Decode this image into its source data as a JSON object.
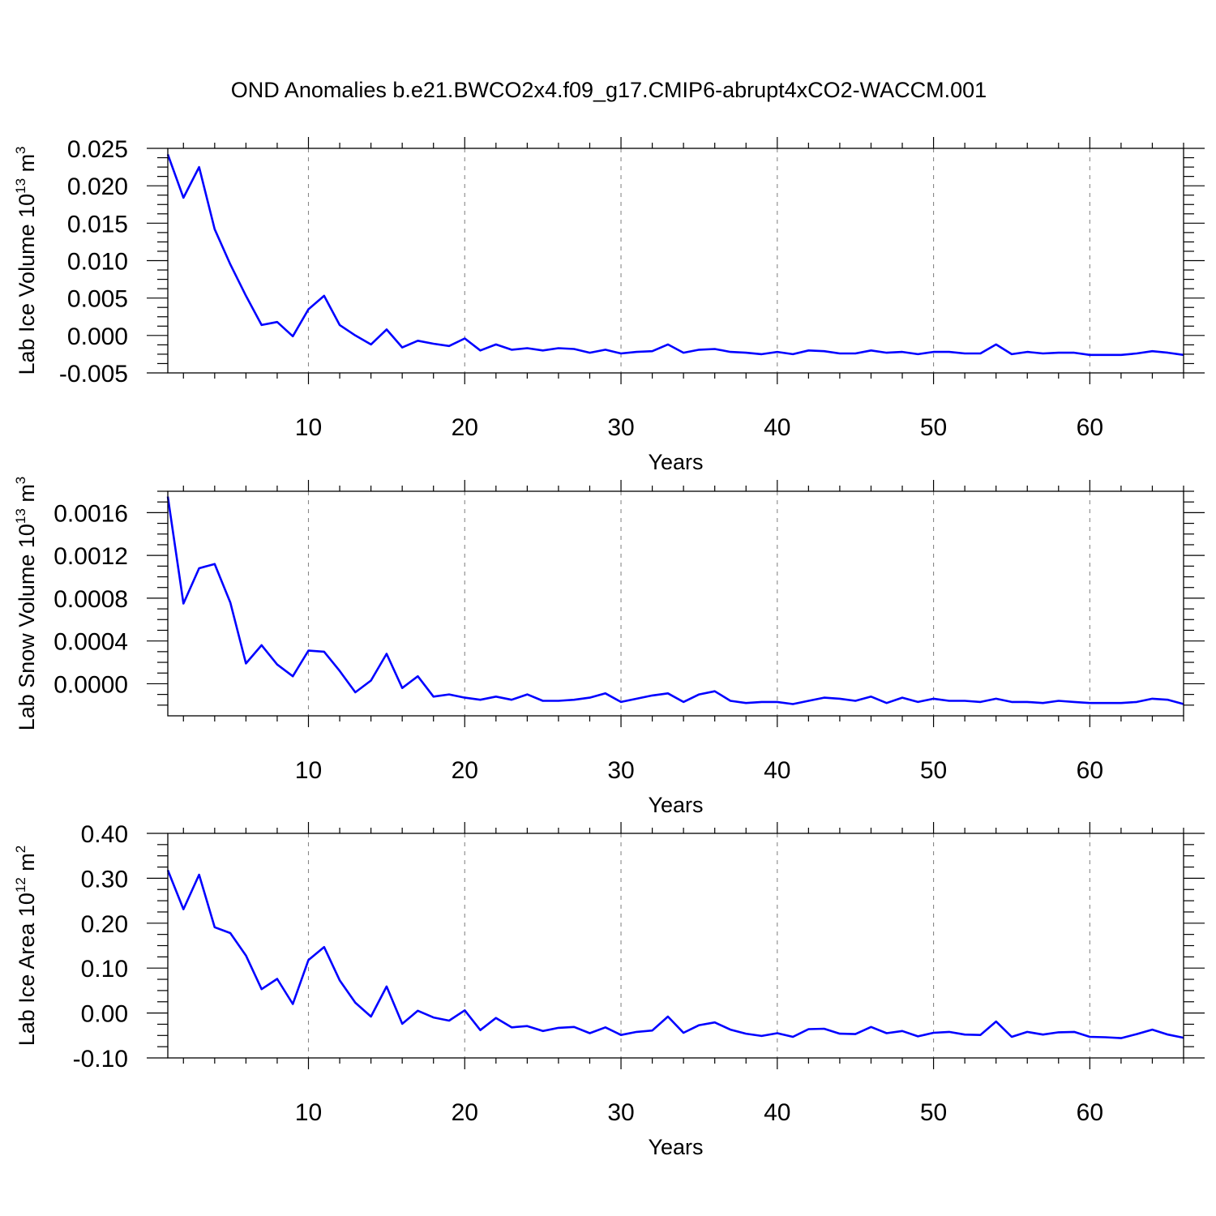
{
  "figure": {
    "title": "OND Anomalies b.e21.BWCO2x4.f09_g17.CMIP6-abrupt4xCO2-WACCM.001",
    "line_color": "#0000ff",
    "grid_color": "#888888"
  },
  "chart_data": [
    {
      "type": "line",
      "ylabel": {
        "main": "Lab Ice Volume 10",
        "sup": "13",
        "unit": " m",
        "unit_sup": "3"
      },
      "xlabel": "Years",
      "xlim": [
        1,
        66
      ],
      "ylim": [
        -0.005,
        0.025
      ],
      "xticks": [
        10,
        20,
        30,
        40,
        50,
        60
      ],
      "xtick_labels": [
        "10",
        "20",
        "30",
        "40",
        "50",
        "60"
      ],
      "yticks": [
        -0.005,
        0.0,
        0.005,
        0.01,
        0.015,
        0.02,
        0.025
      ],
      "ytick_labels": [
        "-0.005",
        "0.000",
        "0.005",
        "0.010",
        "0.015",
        "0.020",
        "0.025"
      ],
      "grid": "vertical dashed at major x ticks",
      "x": [
        1,
        2,
        3,
        4,
        5,
        6,
        7,
        8,
        9,
        10,
        11,
        12,
        13,
        14,
        15,
        16,
        17,
        18,
        19,
        20,
        21,
        22,
        23,
        24,
        25,
        26,
        27,
        28,
        29,
        30,
        31,
        32,
        33,
        34,
        35,
        36,
        37,
        38,
        39,
        40,
        41,
        42,
        43,
        44,
        45,
        46,
        47,
        48,
        49,
        50,
        51,
        52,
        53,
        54,
        55,
        56,
        57,
        58,
        59,
        60,
        61,
        62,
        63,
        64,
        65,
        66
      ],
      "y": [
        0.0242,
        0.0184,
        0.0225,
        0.0142,
        0.0095,
        0.0053,
        0.0014,
        0.0018,
        -0.0001,
        0.0035,
        0.0053,
        0.0014,
        0.0,
        -0.0012,
        0.0008,
        -0.0016,
        -0.0007,
        -0.0011,
        -0.0014,
        -0.0004,
        -0.002,
        -0.0012,
        -0.0019,
        -0.0017,
        -0.002,
        -0.0017,
        -0.0018,
        -0.0023,
        -0.0019,
        -0.0024,
        -0.0022,
        -0.0021,
        -0.0012,
        -0.0023,
        -0.0019,
        -0.0018,
        -0.0022,
        -0.0023,
        -0.0025,
        -0.0022,
        -0.0025,
        -0.002,
        -0.0021,
        -0.0024,
        -0.0024,
        -0.002,
        -0.0023,
        -0.0022,
        -0.0025,
        -0.0022,
        -0.0022,
        -0.0024,
        -0.0024,
        -0.0012,
        -0.0025,
        -0.0022,
        -0.0024,
        -0.0023,
        -0.0023,
        -0.0026,
        -0.0026,
        -0.0026,
        -0.0024,
        -0.0021,
        -0.0023,
        -0.0026
      ]
    },
    {
      "type": "line",
      "ylabel": {
        "main": "Lab Snow Volume 10",
        "sup": "13",
        "unit": " m",
        "unit_sup": "3"
      },
      "xlabel": "Years",
      "xlim": [
        1,
        66
      ],
      "ylim": [
        -0.0003,
        0.0018
      ],
      "xticks": [
        10,
        20,
        30,
        40,
        50,
        60
      ],
      "xtick_labels": [
        "10",
        "20",
        "30",
        "40",
        "50",
        "60"
      ],
      "yticks": [
        0.0,
        0.0004,
        0.0008,
        0.0012,
        0.0016
      ],
      "ytick_labels": [
        "0.0000",
        "0.0004",
        "0.0008",
        "0.0012",
        "0.0016"
      ],
      "grid": "vertical dashed at major x ticks",
      "x": [
        1,
        2,
        3,
        4,
        5,
        6,
        7,
        8,
        9,
        10,
        11,
        12,
        13,
        14,
        15,
        16,
        17,
        18,
        19,
        20,
        21,
        22,
        23,
        24,
        25,
        26,
        27,
        28,
        29,
        30,
        31,
        32,
        33,
        34,
        35,
        36,
        37,
        38,
        39,
        40,
        41,
        42,
        43,
        44,
        45,
        46,
        47,
        48,
        49,
        50,
        51,
        52,
        53,
        54,
        55,
        56,
        57,
        58,
        59,
        60,
        61,
        62,
        63,
        64,
        65,
        66
      ],
      "y": [
        0.00175,
        0.00075,
        0.00108,
        0.00112,
        0.00076,
        0.00019,
        0.00036,
        0.00018,
        7e-05,
        0.00031,
        0.0003,
        0.00012,
        -8e-05,
        3e-05,
        0.00028,
        -4e-05,
        7e-05,
        -0.00012,
        -0.0001,
        -0.00013,
        -0.00015,
        -0.00012,
        -0.00015,
        -0.0001,
        -0.00016,
        -0.00016,
        -0.00015,
        -0.00013,
        -9e-05,
        -0.00017,
        -0.00014,
        -0.00011,
        -9e-05,
        -0.00017,
        -0.0001,
        -7e-05,
        -0.00016,
        -0.00018,
        -0.00017,
        -0.00017,
        -0.00019,
        -0.00016,
        -0.00013,
        -0.00014,
        -0.00016,
        -0.00012,
        -0.00018,
        -0.00013,
        -0.00017,
        -0.00014,
        -0.00016,
        -0.00016,
        -0.00017,
        -0.00014,
        -0.00017,
        -0.00017,
        -0.00018,
        -0.00016,
        -0.00017,
        -0.00018,
        -0.00018,
        -0.00018,
        -0.00017,
        -0.00014,
        -0.00015,
        -0.00019
      ]
    },
    {
      "type": "line",
      "ylabel": {
        "main": "Lab Ice Area 10",
        "sup": "12",
        "unit": " m",
        "unit_sup": "2"
      },
      "xlabel": "Years",
      "xlim": [
        1,
        66
      ],
      "ylim": [
        -0.1,
        0.4
      ],
      "xticks": [
        10,
        20,
        30,
        40,
        50,
        60
      ],
      "xtick_labels": [
        "10",
        "20",
        "30",
        "40",
        "50",
        "60"
      ],
      "yticks": [
        -0.1,
        0.0,
        0.1,
        0.2,
        0.3,
        0.4
      ],
      "ytick_labels": [
        "-0.10",
        "0.00",
        "0.10",
        "0.20",
        "0.30",
        "0.40"
      ],
      "grid": "vertical dashed at major x ticks",
      "x": [
        1,
        2,
        3,
        4,
        5,
        6,
        7,
        8,
        9,
        10,
        11,
        12,
        13,
        14,
        15,
        16,
        17,
        18,
        19,
        20,
        21,
        22,
        23,
        24,
        25,
        26,
        27,
        28,
        29,
        30,
        31,
        32,
        33,
        34,
        35,
        36,
        37,
        38,
        39,
        40,
        41,
        42,
        43,
        44,
        45,
        46,
        47,
        48,
        49,
        50,
        51,
        52,
        53,
        54,
        55,
        56,
        57,
        58,
        59,
        60,
        61,
        62,
        63,
        64,
        65,
        66
      ],
      "y": [
        0.318,
        0.231,
        0.308,
        0.191,
        0.178,
        0.128,
        0.053,
        0.076,
        0.02,
        0.118,
        0.147,
        0.073,
        0.023,
        -0.008,
        0.059,
        -0.024,
        0.005,
        -0.01,
        -0.017,
        0.006,
        -0.038,
        -0.011,
        -0.032,
        -0.029,
        -0.04,
        -0.033,
        -0.031,
        -0.045,
        -0.032,
        -0.049,
        -0.042,
        -0.039,
        -0.008,
        -0.044,
        -0.027,
        -0.021,
        -0.037,
        -0.046,
        -0.051,
        -0.045,
        -0.053,
        -0.036,
        -0.035,
        -0.046,
        -0.047,
        -0.031,
        -0.045,
        -0.04,
        -0.052,
        -0.044,
        -0.042,
        -0.048,
        -0.049,
        -0.019,
        -0.053,
        -0.042,
        -0.048,
        -0.043,
        -0.042,
        -0.053,
        -0.054,
        -0.056,
        -0.047,
        -0.037,
        -0.048,
        -0.055
      ]
    }
  ]
}
